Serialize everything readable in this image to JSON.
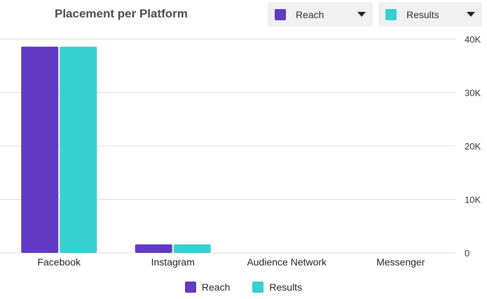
{
  "title": "Placement per Platform",
  "dropdowns": [
    {
      "label": "Reach",
      "color": "#6139c2"
    },
    {
      "label": "Results",
      "color": "#35d0cf"
    }
  ],
  "chart_data": {
    "type": "bar",
    "categories": [
      "Facebook",
      "Instagram",
      "Audience Network",
      "Messenger"
    ],
    "series": [
      {
        "name": "Reach",
        "color": "#6139c2",
        "values": [
          38600,
          1600,
          0,
          0
        ]
      },
      {
        "name": "Results",
        "color": "#35d0cf",
        "values": [
          38600,
          1600,
          0,
          0
        ]
      }
    ],
    "ylim": [
      0,
      40000
    ],
    "yticks": [
      0,
      10000,
      20000,
      30000,
      40000
    ],
    "ytick_labels": [
      "0",
      "10K",
      "20K",
      "30K",
      "40K"
    ],
    "grid": true,
    "y_axis_position": "right",
    "legend_position": "bottom"
  }
}
